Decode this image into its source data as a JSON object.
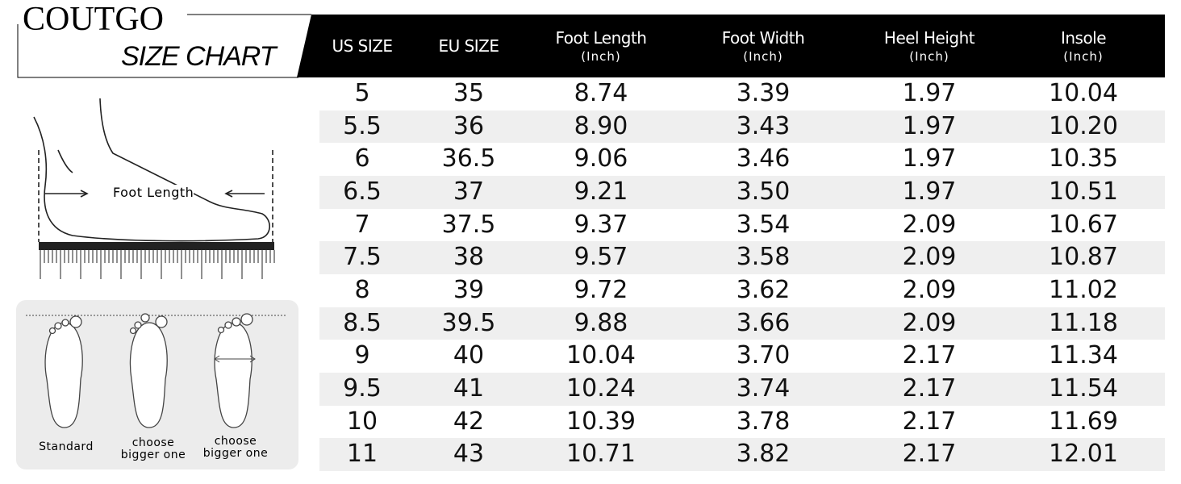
{
  "brand": "COUTGO",
  "subtitle": "SIZE CHART",
  "table": {
    "columns": [
      {
        "label": "US SIZE"
      },
      {
        "label": "EU SIZE"
      },
      {
        "label": "Foot Length",
        "unit": "(Inch)"
      },
      {
        "label": "Foot Width",
        "unit": "(Inch)"
      },
      {
        "label": "Heel Height",
        "unit": "(Inch)"
      },
      {
        "label": "Insole",
        "unit": "(Inch)"
      }
    ],
    "rows": [
      [
        "5",
        "35",
        "8.74",
        "3.39",
        "1.97",
        "10.04"
      ],
      [
        "5.5",
        "36",
        "8.90",
        "3.43",
        "1.97",
        "10.20"
      ],
      [
        "6",
        "36.5",
        "9.06",
        "3.46",
        "1.97",
        "10.35"
      ],
      [
        "6.5",
        "37",
        "9.21",
        "3.50",
        "1.97",
        "10.51"
      ],
      [
        "7",
        "37.5",
        "9.37",
        "3.54",
        "2.09",
        "10.67"
      ],
      [
        "7.5",
        "38",
        "9.57",
        "3.58",
        "2.09",
        "10.87"
      ],
      [
        "8",
        "39",
        "9.72",
        "3.62",
        "2.09",
        "11.02"
      ],
      [
        "8.5",
        "39.5",
        "9.88",
        "3.66",
        "2.09",
        "11.18"
      ],
      [
        "9",
        "40",
        "10.04",
        "3.70",
        "2.17",
        "11.34"
      ],
      [
        "9.5",
        "41",
        "10.24",
        "3.74",
        "2.17",
        "11.54"
      ],
      [
        "10",
        "42",
        "10.39",
        "3.78",
        "2.17",
        "11.69"
      ],
      [
        "11",
        "43",
        "10.71",
        "3.82",
        "2.17",
        "12.01"
      ]
    ]
  },
  "diagram": {
    "foot_length_label": "Foot Length",
    "toe_labels": [
      "Standard",
      "choose bigger one",
      "choose bigger one"
    ]
  }
}
